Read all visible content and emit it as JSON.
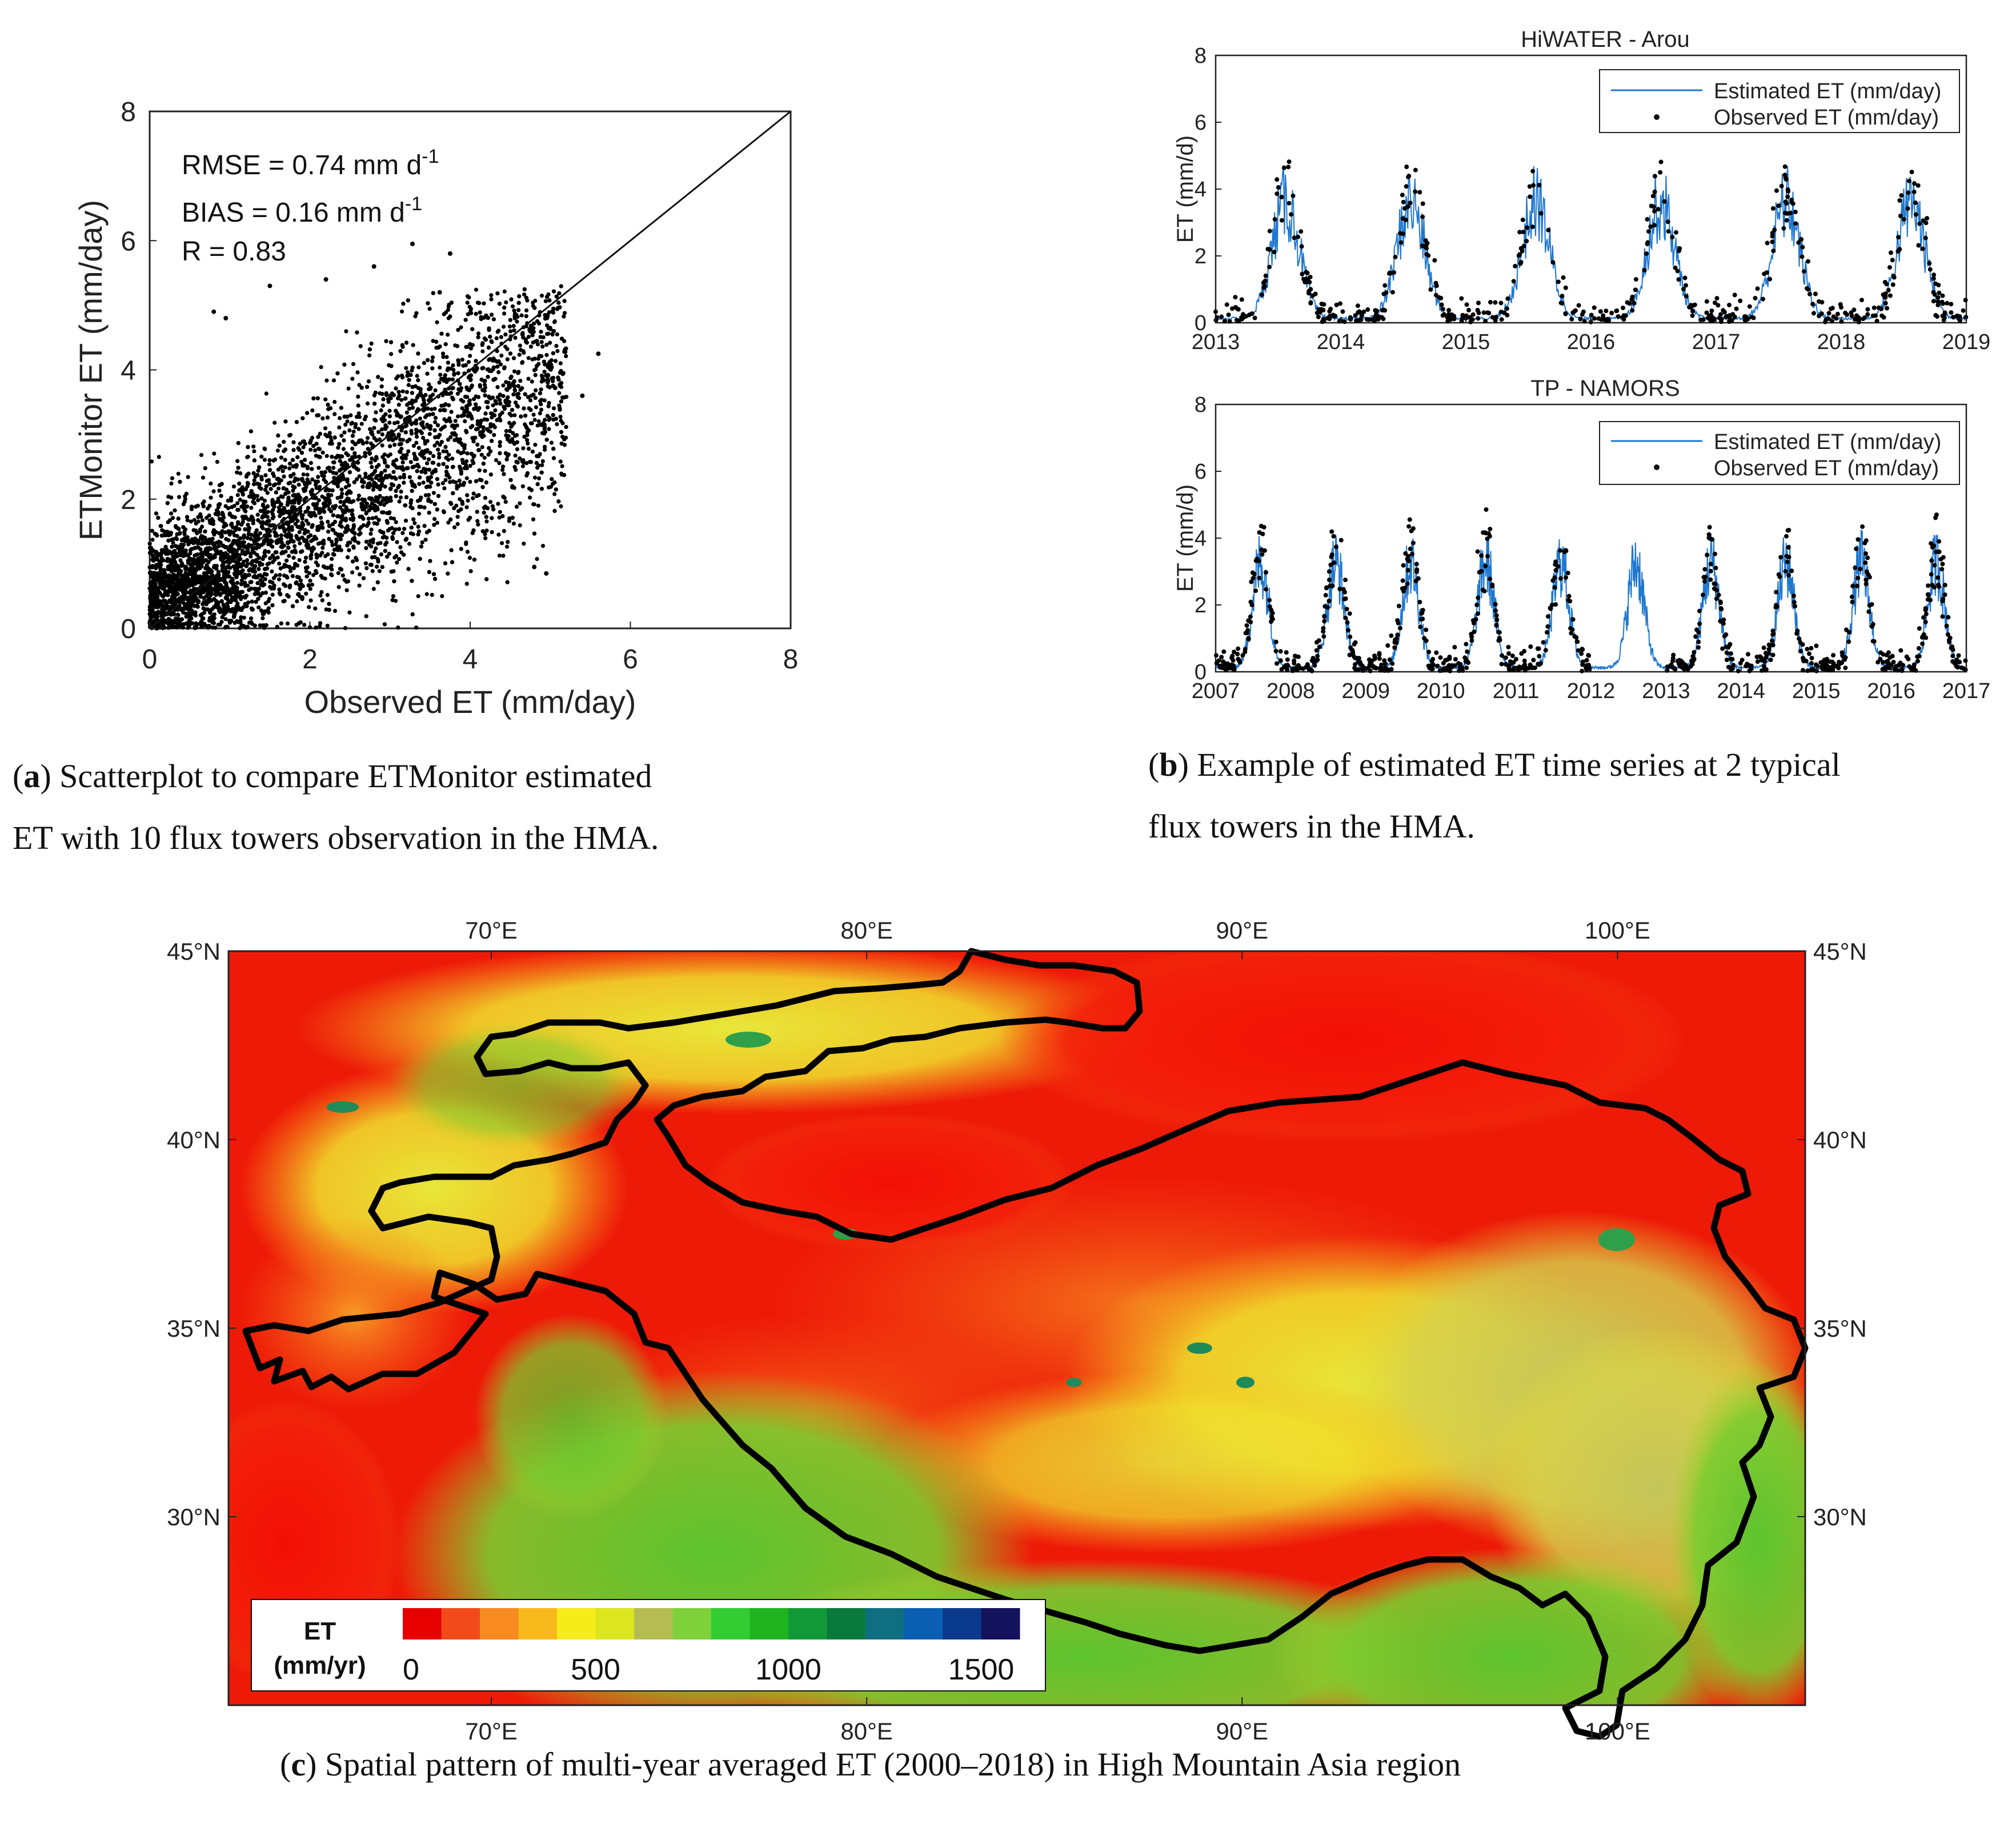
{
  "chart_data": [
    {
      "id": "a",
      "type": "scatter",
      "xlabel": "Observed ET (mm/day)",
      "ylabel": "ETMonitor ET (mm/day)",
      "xlim": [
        0,
        8
      ],
      "ylim": [
        0,
        8
      ],
      "xticks": [
        "0",
        "2",
        "4",
        "6",
        "8"
      ],
      "yticks": [
        "0",
        "2",
        "4",
        "6",
        "8"
      ],
      "one_to_one_line": true,
      "stats": [
        {
          "prefix": "RMSE = 0.74 mm d",
          "sup": "-1"
        },
        {
          "prefix": "BIAS = 0.16 mm d",
          "sup": "-1"
        },
        {
          "prefix": "R = 0.83",
          "sup": ""
        }
      ],
      "sample_points": [
        [
          4.95,
          0.85
        ],
        [
          3.28,
          5.95
        ],
        [
          0.8,
          4.9
        ],
        [
          0.95,
          4.8
        ],
        [
          3.75,
          5.8
        ],
        [
          3.62,
          5.2
        ],
        [
          5.6,
          4.25
        ],
        [
          5.4,
          3.6
        ],
        [
          2.8,
          5.6
        ],
        [
          1.5,
          5.3
        ],
        [
          2.2,
          5.4
        ],
        [
          4.8,
          0.95
        ]
      ]
    },
    {
      "id": "b1",
      "type": "line",
      "title": "HiWATER - Arou",
      "ylabel": "ET (mm/d)",
      "xlim": [
        2013,
        2019
      ],
      "ylim": [
        0,
        8
      ],
      "xticks": [
        "2013",
        "2014",
        "2015",
        "2016",
        "2017",
        "2018",
        "2019"
      ],
      "yticks": [
        "0",
        "2",
        "4",
        "6",
        "8"
      ],
      "legend": [
        "Estimated ET (mm/day)",
        "Observed ET (mm/day)"
      ],
      "seasonal_peak_mm_day": 4.2,
      "peak_time_of_year": 0.56,
      "series_color": "#1f77d0"
    },
    {
      "id": "b2",
      "type": "line",
      "title": "TP - NAMORS",
      "ylabel": "ET (mm/d)",
      "xlim": [
        2007,
        2017
      ],
      "ylim": [
        0,
        8
      ],
      "xticks": [
        "2007",
        "2008",
        "2009",
        "2010",
        "2011",
        "2012",
        "2013",
        "2014",
        "2015",
        "2016",
        "2017"
      ],
      "yticks": [
        "0",
        "2",
        "4",
        "6",
        "8"
      ],
      "legend": [
        "Estimated ET (mm/day)",
        "Observed ET (mm/day)"
      ],
      "seasonal_peak_mm_day": 3.8,
      "peak_time_of_year": 0.6,
      "observed_gap_years": [
        2012,
        2013
      ],
      "series_color": "#1f77d0"
    },
    {
      "id": "c",
      "type": "heatmap",
      "title": "Spatial pattern of multi-year averaged ET (2000–2018) in High Mountain Asia region",
      "lon_range": [
        63,
        105
      ],
      "lat_range": [
        25,
        45
      ],
      "lon_ticks": [
        "70°E",
        "80°E",
        "90°E",
        "100°E"
      ],
      "lat_ticks": [
        "45°N",
        "40°N",
        "35°N",
        "30°N"
      ],
      "colorbar": {
        "label_line1": "ET",
        "label_line2": "(mm/yr)",
        "ticks": [
          "0",
          "500",
          "1000",
          "1500"
        ],
        "range": [
          0,
          1600
        ],
        "colors": [
          "#e60000",
          "#f24a1a",
          "#f78a20",
          "#f7b91c",
          "#f5ec1a",
          "#dce61e",
          "#b5bd52",
          "#7ed13a",
          "#33cc33",
          "#1fb31f",
          "#129937",
          "#0a7a3c",
          "#0f6e80",
          "#0a5fb3",
          "#0a3a8c",
          "#14125c"
        ]
      }
    }
  ],
  "captions": {
    "a": {
      "label": "a",
      "text_line1": " Scatterplot to compare ETMonitor estimated",
      "text_line2": "ET with 10 flux towers observation in the HMA."
    },
    "b": {
      "label": "b",
      "text_line1": " Example of estimated ET time series at 2 typical",
      "text_line2": "flux towers in the HMA."
    },
    "c": {
      "label": "c",
      "text": " Spatial pattern of multi-year averaged ET (2000–2018) in High Mountain Asia region"
    }
  }
}
